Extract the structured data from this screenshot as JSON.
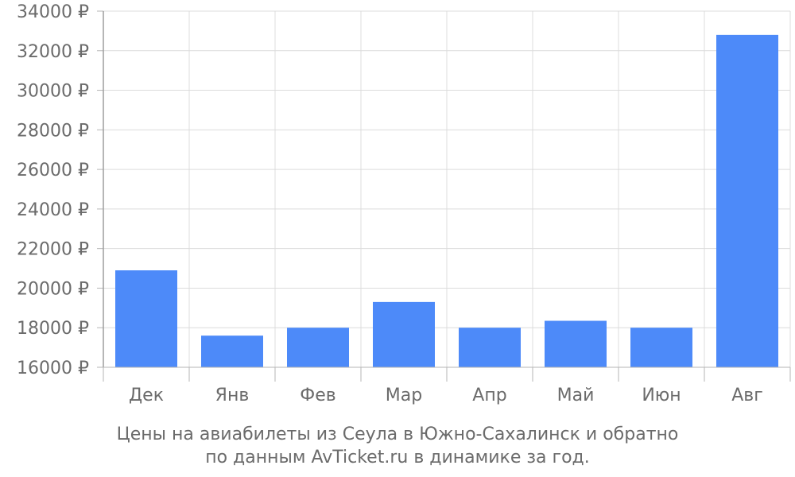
{
  "chart_data": {
    "type": "bar",
    "categories": [
      "Дек",
      "Янв",
      "Фев",
      "Мар",
      "Апр",
      "Май",
      "Июн",
      "Авг"
    ],
    "values": [
      20900,
      17600,
      18000,
      19300,
      18000,
      18350,
      18000,
      32800
    ],
    "ylim": [
      16000,
      34000
    ],
    "yticks": [
      16000,
      18000,
      20000,
      22000,
      24000,
      26000,
      28000,
      30000,
      32000,
      34000
    ],
    "ytick_labels": [
      "16000 ₽",
      "18000 ₽",
      "20000 ₽",
      "22000 ₽",
      "24000 ₽",
      "26000 ₽",
      "28000 ₽",
      "30000 ₽",
      "32000 ₽",
      "34000 ₽"
    ],
    "grid": true,
    "bar_color": "#4d8af9",
    "caption_line1": "Цены на авиабилеты из Сеула в Южно-Сахалинск и обратно",
    "caption_line2": "по данным AvTicket.ru в динамике за год."
  }
}
